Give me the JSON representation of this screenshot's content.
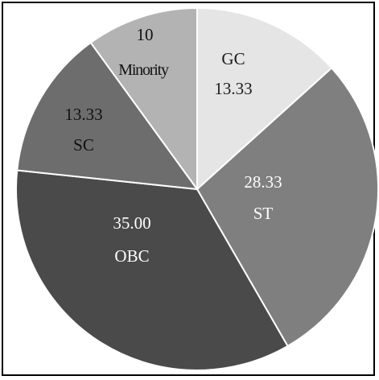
{
  "chart_data": {
    "type": "pie",
    "title": "",
    "unit": "",
    "slices": [
      {
        "label": "GC",
        "value": 13.33,
        "value_text": "13.33",
        "color": "#e5e5e5",
        "text_color": "#1a1a1a"
      },
      {
        "label": "ST",
        "value": 28.33,
        "value_text": "28.33",
        "color": "#7f7f7f",
        "text_color": "#ffffff"
      },
      {
        "label": "OBC",
        "value": 35.0,
        "value_text": "35.00",
        "color": "#4a4a4a",
        "text_color": "#ffffff"
      },
      {
        "label": "SC",
        "value": 13.33,
        "value_text": "13.33",
        "color": "#6d6d6d",
        "text_color": "#111111"
      },
      {
        "label": "Minority",
        "value": 10,
        "value_text": "10",
        "color": "#b3b3b3",
        "text_color": "#111111"
      }
    ],
    "start_angle_deg": 0,
    "direction": "clockwise",
    "legend": "none"
  }
}
